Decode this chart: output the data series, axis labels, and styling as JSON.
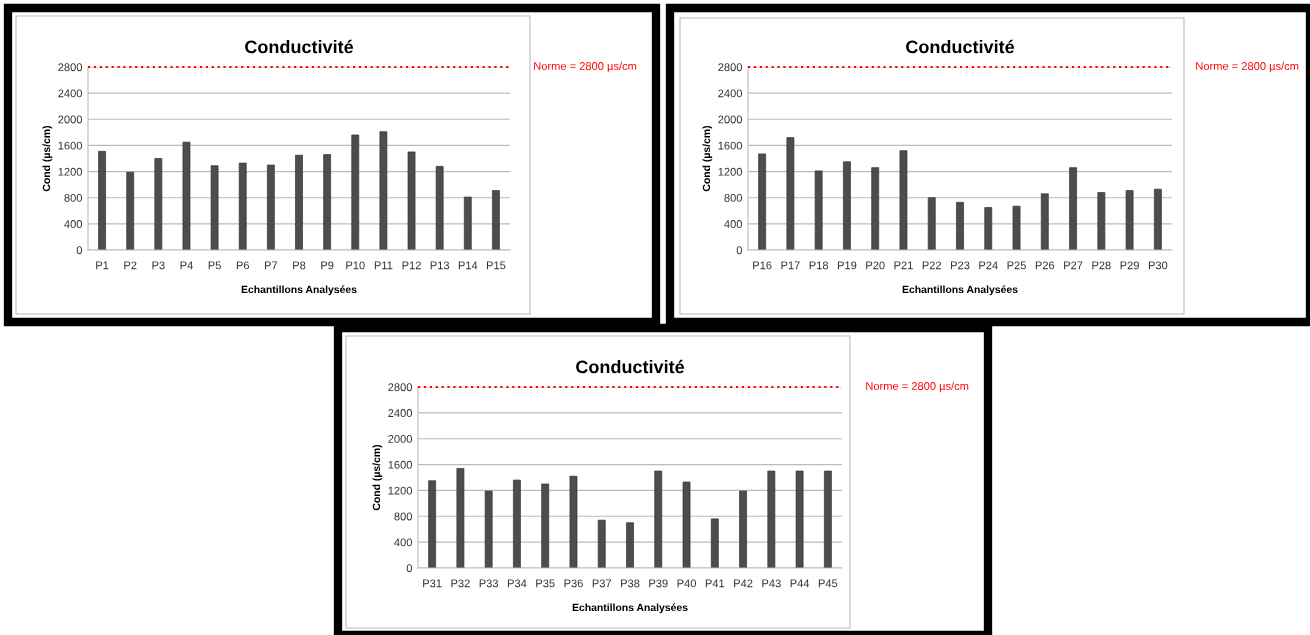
{
  "chart_data": [
    {
      "type": "bar",
      "title": "Conductivité",
      "xlabel": "Echantillons Analysées",
      "ylabel": "Cond (µs/cm)",
      "categories": [
        "P1",
        "P2",
        "P3",
        "P4",
        "P5",
        "P6",
        "P7",
        "P8",
        "P9",
        "P10",
        "P11",
        "P12",
        "P13",
        "P14",
        "P15"
      ],
      "values": [
        1510,
        1190,
        1400,
        1650,
        1290,
        1330,
        1300,
        1450,
        1460,
        1760,
        1810,
        1500,
        1280,
        810,
        910
      ],
      "color": "#4d4d4d",
      "ylim": [
        0,
        2800
      ],
      "yticks": [
        0,
        400,
        800,
        1200,
        1600,
        2000,
        2400,
        2800
      ],
      "grid": "y",
      "ref_lines": [
        {
          "axis": "y",
          "value": 2800,
          "label": "Norme = 2800 µs/cm",
          "color": "#ff0000",
          "line_style": "dotted"
        }
      ]
    },
    {
      "type": "bar",
      "title": "Conductivité",
      "xlabel": "Echantillons Analysées",
      "ylabel": "Cond (µs/cm)",
      "categories": [
        "P16",
        "P17",
        "P18",
        "P19",
        "P20",
        "P21",
        "P22",
        "P23",
        "P24",
        "P25",
        "P26",
        "P27",
        "P28",
        "P29",
        "P30"
      ],
      "values": [
        1470,
        1720,
        1210,
        1350,
        1260,
        1520,
        800,
        730,
        650,
        670,
        860,
        1260,
        880,
        910,
        930
      ],
      "color": "#4d4d4d",
      "ylim": [
        0,
        2800
      ],
      "yticks": [
        0,
        400,
        800,
        1200,
        1600,
        2000,
        2400,
        2800
      ],
      "grid": "y",
      "ref_lines": [
        {
          "axis": "y",
          "value": 2800,
          "label": "Norme = 2800 µs/cm",
          "color": "#ff0000",
          "line_style": "dotted"
        }
      ]
    },
    {
      "type": "bar",
      "title": "Conductivité",
      "xlabel": "Echantillons Analysées",
      "ylabel": "Cond (µs/cm)",
      "categories": [
        "P31",
        "P32",
        "P33",
        "P34",
        "P35",
        "P36",
        "P37",
        "P38",
        "P39",
        "P40",
        "P41",
        "P42",
        "P43",
        "P44",
        "P45"
      ],
      "values": [
        1350,
        1540,
        1190,
        1360,
        1300,
        1420,
        740,
        700,
        1500,
        1330,
        760,
        1190,
        1500,
        1500,
        1500
      ],
      "color": "#4d4d4d",
      "ylim": [
        0,
        2800
      ],
      "yticks": [
        0,
        400,
        800,
        1200,
        1600,
        2000,
        2400,
        2800
      ],
      "grid": "y",
      "ref_lines": [
        {
          "axis": "y",
          "value": 2800,
          "label": "Norme = 2800 µs/cm",
          "color": "#ff0000",
          "line_style": "dotted"
        }
      ]
    }
  ]
}
